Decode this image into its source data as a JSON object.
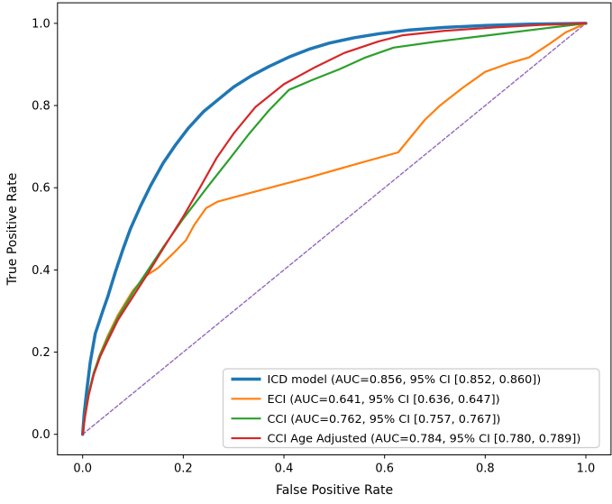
{
  "chart_data": {
    "type": "line",
    "title": "",
    "xlabel": "False Positive Rate",
    "ylabel": "True Positive Rate",
    "xlim": [
      -0.05,
      1.05
    ],
    "ylim": [
      -0.05,
      1.05
    ],
    "grid": false,
    "legend_position": "lower right",
    "xticks": {
      "values": [
        0.0,
        0.2,
        0.4,
        0.6,
        0.8,
        1.0
      ],
      "labels": [
        "0.0",
        "0.2",
        "0.4",
        "0.6",
        "0.8",
        "1.0"
      ]
    },
    "yticks": {
      "values": [
        0.0,
        0.2,
        0.4,
        0.6,
        0.8,
        1.0
      ],
      "labels": [
        "0.0",
        "0.2",
        "0.4",
        "0.6",
        "0.8",
        "1.0"
      ]
    },
    "colors": {
      "icd": "#1f77b4",
      "eci": "#ff7f0e",
      "cci": "#2ca02c",
      "cci_age_adjusted": "#d62728",
      "chance": "#9467bd",
      "spine": "#000000",
      "legend_border": "#cccccc",
      "legend_background": "#ffffff"
    },
    "series": [
      {
        "name": "ICD model (AUC=0.856, 95% CI [0.852, 0.860])",
        "slug": "icd-model",
        "auc": 0.856,
        "ci": [
          0.852,
          0.86
        ],
        "color": "#1f77b4",
        "line_width": 3.5,
        "dash": null,
        "in_legend": true,
        "points": [
          [
            0,
            0
          ],
          [
            0.003,
            0.05
          ],
          [
            0.008,
            0.105
          ],
          [
            0.015,
            0.175
          ],
          [
            0.025,
            0.245
          ],
          [
            0.04,
            0.3
          ],
          [
            0.05,
            0.335
          ],
          [
            0.065,
            0.395
          ],
          [
            0.08,
            0.45
          ],
          [
            0.095,
            0.5
          ],
          [
            0.115,
            0.555
          ],
          [
            0.135,
            0.605
          ],
          [
            0.16,
            0.66
          ],
          [
            0.185,
            0.705
          ],
          [
            0.21,
            0.745
          ],
          [
            0.24,
            0.785
          ],
          [
            0.27,
            0.815
          ],
          [
            0.3,
            0.845
          ],
          [
            0.335,
            0.872
          ],
          [
            0.37,
            0.895
          ],
          [
            0.41,
            0.918
          ],
          [
            0.45,
            0.937
          ],
          [
            0.49,
            0.952
          ],
          [
            0.54,
            0.965
          ],
          [
            0.59,
            0.975
          ],
          [
            0.65,
            0.984
          ],
          [
            0.72,
            0.99
          ],
          [
            0.8,
            0.995
          ],
          [
            0.89,
            0.998
          ],
          [
            1,
            1
          ]
        ]
      },
      {
        "name": "ECI (AUC=0.641, 95% CI [0.636, 0.647])",
        "slug": "eci",
        "auc": 0.641,
        "ci": [
          0.636,
          0.647
        ],
        "color": "#ff7f0e",
        "line_width": 2.2,
        "dash": null,
        "in_legend": true,
        "points": [
          [
            0,
            0
          ],
          [
            0.004,
            0.04
          ],
          [
            0.01,
            0.085
          ],
          [
            0.02,
            0.14
          ],
          [
            0.033,
            0.19
          ],
          [
            0.05,
            0.24
          ],
          [
            0.07,
            0.29
          ],
          [
            0.1,
            0.35
          ],
          [
            0.125,
            0.385
          ],
          [
            0.15,
            0.405
          ],
          [
            0.18,
            0.44
          ],
          [
            0.205,
            0.472
          ],
          [
            0.222,
            0.51
          ],
          [
            0.245,
            0.55
          ],
          [
            0.268,
            0.566
          ],
          [
            0.35,
            0.593
          ],
          [
            0.45,
            0.625
          ],
          [
            0.55,
            0.66
          ],
          [
            0.627,
            0.686
          ],
          [
            0.68,
            0.765
          ],
          [
            0.71,
            0.8
          ],
          [
            0.755,
            0.843
          ],
          [
            0.8,
            0.882
          ],
          [
            0.845,
            0.902
          ],
          [
            0.887,
            0.917
          ],
          [
            0.93,
            0.952
          ],
          [
            0.96,
            0.978
          ],
          [
            1,
            1
          ]
        ]
      },
      {
        "name": "CCI (AUC=0.762, 95% CI [0.757, 0.767])",
        "slug": "cci",
        "auc": 0.762,
        "ci": [
          0.757,
          0.767
        ],
        "color": "#2ca02c",
        "line_width": 2.2,
        "dash": null,
        "in_legend": true,
        "points": [
          [
            0,
            0
          ],
          [
            0.005,
            0.05
          ],
          [
            0.012,
            0.1
          ],
          [
            0.022,
            0.15
          ],
          [
            0.035,
            0.195
          ],
          [
            0.05,
            0.235
          ],
          [
            0.07,
            0.285
          ],
          [
            0.1,
            0.345
          ],
          [
            0.13,
            0.4
          ],
          [
            0.16,
            0.455
          ],
          [
            0.2,
            0.525
          ],
          [
            0.25,
            0.605
          ],
          [
            0.292,
            0.67
          ],
          [
            0.33,
            0.73
          ],
          [
            0.37,
            0.788
          ],
          [
            0.41,
            0.838
          ],
          [
            0.46,
            0.864
          ],
          [
            0.51,
            0.888
          ],
          [
            0.56,
            0.916
          ],
          [
            0.618,
            0.941
          ],
          [
            0.7,
            0.955
          ],
          [
            0.8,
            0.97
          ],
          [
            0.9,
            0.985
          ],
          [
            1,
            1
          ]
        ]
      },
      {
        "name": "CCI Age Adjusted (AUC=0.784, 95% CI [0.780, 0.789])",
        "slug": "cci-age-adjusted",
        "auc": 0.784,
        "ci": [
          0.78,
          0.789
        ],
        "color": "#d62728",
        "line_width": 2.2,
        "dash": null,
        "in_legend": true,
        "points": [
          [
            0,
            0
          ],
          [
            0.005,
            0.045
          ],
          [
            0.012,
            0.095
          ],
          [
            0.022,
            0.145
          ],
          [
            0.035,
            0.19
          ],
          [
            0.05,
            0.228
          ],
          [
            0.07,
            0.278
          ],
          [
            0.1,
            0.335
          ],
          [
            0.13,
            0.392
          ],
          [
            0.16,
            0.452
          ],
          [
            0.2,
            0.53
          ],
          [
            0.233,
            0.6
          ],
          [
            0.266,
            0.672
          ],
          [
            0.3,
            0.732
          ],
          [
            0.343,
            0.796
          ],
          [
            0.4,
            0.852
          ],
          [
            0.463,
            0.894
          ],
          [
            0.52,
            0.928
          ],
          [
            0.588,
            0.956
          ],
          [
            0.636,
            0.971
          ],
          [
            0.72,
            0.982
          ],
          [
            0.82,
            0.99
          ],
          [
            0.91,
            0.996
          ],
          [
            1,
            1
          ]
        ]
      },
      {
        "name": "chance diagonal",
        "slug": "chance-diagonal",
        "color": "#9467bd",
        "line_width": 1.4,
        "dash": "4 2.6",
        "in_legend": false,
        "points": [
          [
            0,
            0
          ],
          [
            1,
            1
          ]
        ]
      }
    ]
  }
}
